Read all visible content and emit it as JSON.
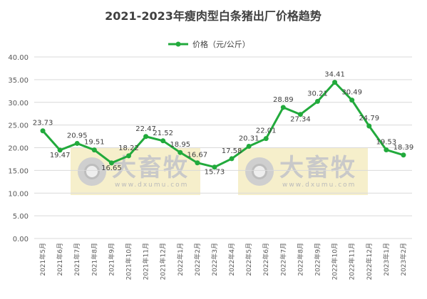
{
  "chart_data": {
    "type": "line",
    "title": "2021-2023年瘦肉型白条猪出厂价格趋势",
    "legend_position": "top",
    "categories": [
      "2021年5月",
      "2021年6月",
      "2021年7月",
      "2021年8月",
      "2021年9月",
      "2021年10月",
      "2021年11月",
      "2021年12月",
      "2022年1月",
      "2022年2月",
      "2022年3月",
      "2022年4月",
      "2022年5月",
      "2022年6月",
      "2022年7月",
      "2022年8月",
      "2022年9月",
      "2022年10月",
      "2022年11月",
      "2022年12月",
      "2023年1月",
      "2023年2月"
    ],
    "series": [
      {
        "name": "价格（元/公斤）",
        "values": [
          23.73,
          19.47,
          20.95,
          19.51,
          16.65,
          18.22,
          22.47,
          21.52,
          18.95,
          16.67,
          15.73,
          17.58,
          20.31,
          22.01,
          28.89,
          27.34,
          30.21,
          34.41,
          30.49,
          24.79,
          19.53,
          18.39
        ],
        "labels": [
          "23.73",
          "19.47",
          "20.95",
          "19.51",
          "16.65",
          "18.22",
          "22.47",
          "21.52",
          "18.95",
          "16.67",
          "15.73",
          "17.58",
          "20.31",
          "22.01",
          "28.89",
          "27.34",
          "30.21",
          "34.41",
          "30.49",
          "24.79",
          "19.53",
          "18.39"
        ]
      }
    ],
    "ylim": [
      0,
      40
    ],
    "yticks": [
      "0.00",
      "5.00",
      "10.00",
      "15.00",
      "20.00",
      "25.00",
      "30.00",
      "35.00",
      "40.00"
    ],
    "grid": true,
    "colors": {
      "line": "#22aa3c",
      "grid": "#d9d9d9",
      "text": "#404040",
      "axis_text": "#595959",
      "title": "#404040"
    }
  },
  "watermarks": [
    {
      "brand": "大畜牧",
      "url": "www.dxumu.com"
    },
    {
      "brand": "大畜牧",
      "url": "www.dxumu.com"
    }
  ]
}
